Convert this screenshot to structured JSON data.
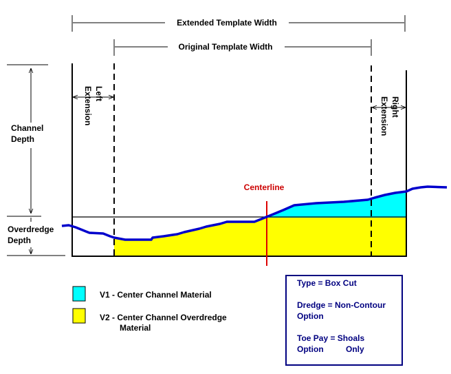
{
  "dimensions": {
    "extended_width": "Extended Template Width",
    "original_width": "Original Template Width",
    "left_extension": [
      "Left",
      "Extension"
    ],
    "right_extension": [
      "Right",
      "Extension"
    ],
    "channel_depth": [
      "Channel",
      "Depth"
    ],
    "overdredge_depth": [
      "Overdredge",
      "Depth"
    ]
  },
  "centerline": "Centerline",
  "legend": {
    "v1": {
      "label": "V1 - Center Channel Material",
      "color": "#00ffff"
    },
    "v2": {
      "label_1": "V2 - Center Channel Overdredge",
      "label_2": "Material",
      "color": "#ffff00"
    }
  },
  "info_box": {
    "type": "Type = Box Cut",
    "dredge_1": "Dredge = Non-Contour",
    "dredge_2": "Option",
    "toe_pay_1": "Toe Pay = Shoals",
    "toe_pay_2a": "Option",
    "toe_pay_2b": "Only"
  },
  "colors": {
    "profile": "#0000cc",
    "centerline": "#dd0000",
    "v1_fill": "#00ffff",
    "v2_fill": "#ffff00",
    "info_text": "#000080"
  }
}
